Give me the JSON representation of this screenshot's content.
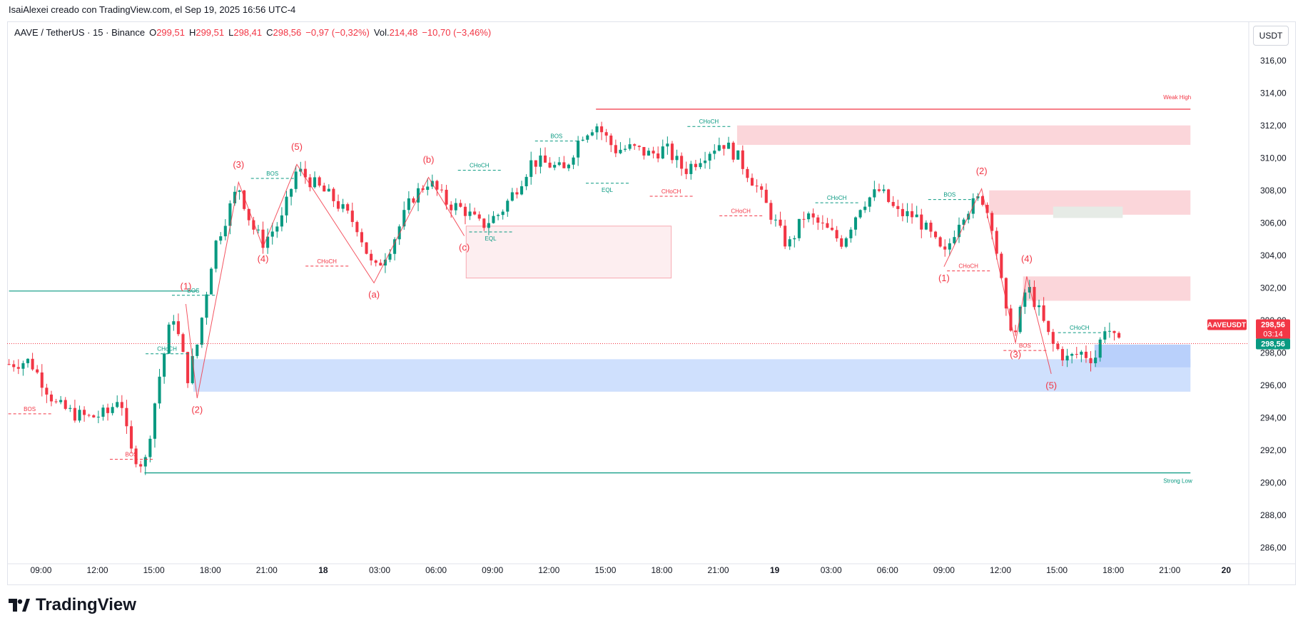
{
  "header": {
    "attribution": "IsaiAlexei creado con TradingView.com, el Sep 19, 2025 16:56 UTC-4"
  },
  "legend": {
    "symbol": "AAVE / TetherUS · 15 · Binance",
    "o_label": "O",
    "o_value": "299,51",
    "h_label": "H",
    "h_value": "299,51",
    "l_label": "L",
    "l_value": "298,41",
    "c_label": "C",
    "c_value": "298,56",
    "change": "−0,97 (−0,32%)",
    "vol_label": "Vol.",
    "vol_value": "214,48",
    "vol_change": "−10,70 (−3,46%)"
  },
  "currency_button": "USDT",
  "logo_text": "TradingView",
  "colors": {
    "up": "#089981",
    "down": "#f23645",
    "supply_zone": "#fbd6da",
    "demand_zone": "#cfe0fd"
  },
  "chart_data": {
    "type": "candlestick",
    "symbol": "AAVEUSDT",
    "ylim": [
      285,
      317
    ],
    "y_ticks": [
      "286,00",
      "288,00",
      "290,00",
      "292,00",
      "294,00",
      "296,00",
      "298,00",
      "300,00",
      "302,00",
      "304,00",
      "306,00",
      "308,00",
      "310,00",
      "312,00",
      "314,00",
      "316,00"
    ],
    "x_ticks": [
      {
        "label": "09:00",
        "t": 0.0
      },
      {
        "label": "12:00",
        "t": 3.0
      },
      {
        "label": "15:00",
        "t": 6.0
      },
      {
        "label": "18:00",
        "t": 9.0
      },
      {
        "label": "21:00",
        "t": 12.0
      },
      {
        "label": "18",
        "t": 15.0,
        "bold": true
      },
      {
        "label": "03:00",
        "t": 18.0
      },
      {
        "label": "06:00",
        "t": 21.0
      },
      {
        "label": "09:00",
        "t": 24.0
      },
      {
        "label": "12:00",
        "t": 27.0
      },
      {
        "label": "15:00",
        "t": 30.0
      },
      {
        "label": "18:00",
        "t": 33.0
      },
      {
        "label": "21:00",
        "t": 36.0
      },
      {
        "label": "19",
        "t": 39.0,
        "bold": true
      },
      {
        "label": "03:00",
        "t": 42.0
      },
      {
        "label": "06:00",
        "t": 45.0
      },
      {
        "label": "09:00",
        "t": 48.0
      },
      {
        "label": "12:00",
        "t": 51.0
      },
      {
        "label": "15:00",
        "t": 54.0
      },
      {
        "label": "18:00",
        "t": 57.0
      },
      {
        "label": "21:00",
        "t": 60.0
      },
      {
        "label": "20",
        "t": 63.0,
        "bold": true
      }
    ],
    "price_path": [
      [
        -1.7,
        297.3
      ],
      [
        -0.6,
        297.5
      ],
      [
        0.8,
        294.8
      ],
      [
        1.8,
        294.2
      ],
      [
        2.6,
        294.0
      ],
      [
        3.6,
        294.3
      ],
      [
        4.2,
        295.5
      ],
      [
        4.7,
        292.0
      ],
      [
        5.5,
        291.0
      ],
      [
        6.2,
        296.0
      ],
      [
        7.0,
        300.5
      ],
      [
        7.8,
        296.5
      ],
      [
        8.3,
        298.5
      ],
      [
        9.2,
        304.5
      ],
      [
        10.5,
        308.3
      ],
      [
        11.2,
        305.8
      ],
      [
        11.8,
        304.8
      ],
      [
        12.8,
        306.2
      ],
      [
        13.6,
        309.3
      ],
      [
        14.4,
        308.5
      ],
      [
        15.5,
        307.5
      ],
      [
        16.8,
        305.8
      ],
      [
        17.7,
        303.0
      ],
      [
        18.6,
        304.6
      ],
      [
        19.7,
        307.5
      ],
      [
        20.6,
        308.6
      ],
      [
        21.6,
        307.2
      ],
      [
        22.5,
        306.8
      ],
      [
        23.4,
        305.8
      ],
      [
        24.4,
        306.6
      ],
      [
        25.2,
        308.0
      ],
      [
        26.1,
        309.8
      ],
      [
        27.0,
        309.6
      ],
      [
        27.8,
        309.2
      ],
      [
        28.7,
        311.4
      ],
      [
        29.5,
        312.1
      ],
      [
        30.5,
        310.5
      ],
      [
        31.4,
        310.6
      ],
      [
        32.4,
        310.2
      ],
      [
        33.2,
        310.6
      ],
      [
        34.2,
        309.2
      ],
      [
        35.2,
        310.2
      ],
      [
        36.2,
        311.0
      ],
      [
        37.0,
        310.1
      ],
      [
        38.0,
        308.3
      ],
      [
        38.9,
        306.3
      ],
      [
        39.7,
        304.5
      ],
      [
        40.6,
        306.5
      ],
      [
        41.5,
        305.8
      ],
      [
        42.6,
        304.8
      ],
      [
        43.6,
        307.2
      ],
      [
        44.6,
        308.0
      ],
      [
        45.5,
        306.6
      ],
      [
        46.5,
        306.4
      ],
      [
        47.3,
        305.2
      ],
      [
        48.0,
        303.9
      ],
      [
        48.9,
        306.5
      ],
      [
        50.0,
        307.6
      ],
      [
        50.6,
        305.8
      ],
      [
        51.3,
        300.3
      ],
      [
        51.8,
        299.2
      ],
      [
        52.4,
        302.2
      ],
      [
        53.1,
        300.4
      ],
      [
        53.7,
        298.6
      ],
      [
        54.5,
        297.6
      ],
      [
        55.3,
        298.0
      ],
      [
        56.0,
        297.6
      ],
      [
        56.6,
        299.8
      ],
      [
        57.2,
        298.5
      ]
    ],
    "zones": [
      {
        "kind": "supply",
        "t0": 37.0,
        "t1": 61.1,
        "p0": 310.8,
        "p1": 312.0
      },
      {
        "kind": "supply",
        "t0": 50.4,
        "t1": 61.1,
        "p0": 306.5,
        "p1": 308.0
      },
      {
        "kind": "supply",
        "t0": 52.2,
        "t1": 61.1,
        "p0": 301.2,
        "p1": 302.7
      },
      {
        "kind": "supply-light",
        "t0": 22.6,
        "t1": 33.5,
        "p0": 302.6,
        "p1": 305.8
      },
      {
        "kind": "demand",
        "t0": 8.1,
        "t1": 61.1,
        "p0": 295.6,
        "p1": 297.6
      },
      {
        "kind": "demand-light",
        "t0": 56.0,
        "t1": 61.1,
        "p0": 297.1,
        "p1": 298.5
      },
      {
        "kind": "gray",
        "t0": 53.8,
        "t1": 57.5,
        "p0": 306.3,
        "p1": 307.0
      }
    ],
    "levels": [
      {
        "label": "Weak High",
        "price": 313.0,
        "t0": 29.5,
        "t1": 61.1,
        "color": "#f23645"
      },
      {
        "label": "Strong Low",
        "price": 290.6,
        "t0": 5.5,
        "t1": 61.1,
        "color": "#089981"
      },
      {
        "label": "",
        "price": 301.8,
        "t0": -1.7,
        "t1": 8.3,
        "color": "#089981"
      }
    ],
    "structure_labels": [
      {
        "text": "BOS",
        "t": -0.6,
        "p": 294.5,
        "color": "#f23645"
      },
      {
        "text": "BOS",
        "t": 4.8,
        "p": 291.7,
        "color": "#f23645"
      },
      {
        "text": "CHoCH",
        "t": 6.7,
        "p": 298.2,
        "color": "#089981"
      },
      {
        "text": "BOS",
        "t": 8.1,
        "p": 301.8,
        "color": "#089981"
      },
      {
        "text": "BOS",
        "t": 12.3,
        "p": 309.0,
        "color": "#089981"
      },
      {
        "text": "CHoCH",
        "t": 15.2,
        "p": 303.6,
        "color": "#f23645"
      },
      {
        "text": "CHoCH",
        "t": 23.3,
        "p": 309.5,
        "color": "#089981"
      },
      {
        "text": "EQL",
        "t": 23.9,
        "p": 305.0,
        "color": "#089981"
      },
      {
        "text": "BOS",
        "t": 27.4,
        "p": 311.3,
        "color": "#089981"
      },
      {
        "text": "EQL",
        "t": 30.1,
        "p": 308.0,
        "color": "#089981"
      },
      {
        "text": "CHoCH",
        "t": 33.5,
        "p": 307.9,
        "color": "#f23645"
      },
      {
        "text": "CHoCH",
        "t": 35.5,
        "p": 312.2,
        "color": "#089981"
      },
      {
        "text": "CHoCH",
        "t": 37.2,
        "p": 306.7,
        "color": "#f23645"
      },
      {
        "text": "CHoCH",
        "t": 42.3,
        "p": 307.5,
        "color": "#089981"
      },
      {
        "text": "BOS",
        "t": 48.3,
        "p": 307.7,
        "color": "#089981"
      },
      {
        "text": "CHoCH",
        "t": 49.3,
        "p": 303.3,
        "color": "#f23645"
      },
      {
        "text": "BOS",
        "t": 52.3,
        "p": 298.4,
        "color": "#f23645"
      },
      {
        "text": "CHoCH",
        "t": 55.2,
        "p": 299.5,
        "color": "#089981"
      }
    ],
    "wave_labels": [
      {
        "text": "(1)",
        "t": 7.7,
        "p": 301.9
      },
      {
        "text": "(2)",
        "t": 8.3,
        "p": 294.3
      },
      {
        "text": "(3)",
        "t": 10.5,
        "p": 309.4
      },
      {
        "text": "(4)",
        "t": 11.8,
        "p": 303.6
      },
      {
        "text": "(5)",
        "t": 13.6,
        "p": 310.5
      },
      {
        "text": "(a)",
        "t": 17.7,
        "p": 301.4
      },
      {
        "text": "(b)",
        "t": 20.6,
        "p": 309.7
      },
      {
        "text": "(c)",
        "t": 22.5,
        "p": 304.3
      },
      {
        "text": "(1)",
        "t": 48.0,
        "p": 302.4
      },
      {
        "text": "(2)",
        "t": 50.0,
        "p": 309.0
      },
      {
        "text": "(3)",
        "t": 51.8,
        "p": 297.7
      },
      {
        "text": "(4)",
        "t": 52.4,
        "p": 303.6
      },
      {
        "text": "(5)",
        "t": 53.7,
        "p": 295.8
      }
    ],
    "last_price": {
      "symbol": "AAVEUSDT",
      "price": "298,56",
      "countdown": "03:14",
      "value": 298.56
    }
  }
}
